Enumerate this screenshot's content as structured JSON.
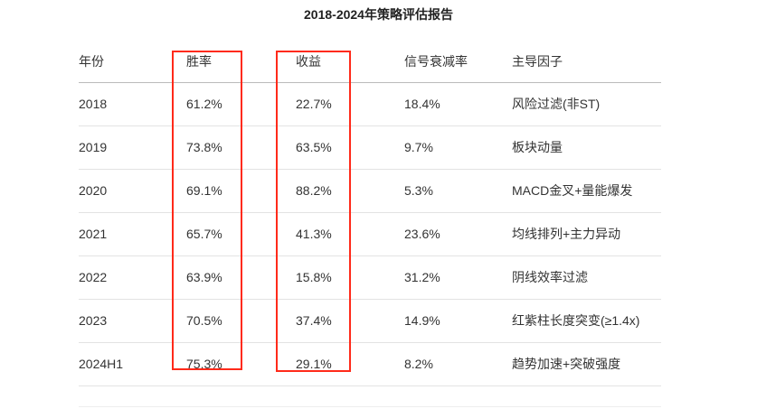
{
  "title": "2018-2024年策略评估报告",
  "headers": [
    "年份",
    "胜率",
    "收益",
    "信号衰减率",
    "主导因子"
  ],
  "rows": [
    [
      "2018",
      "61.2%",
      "22.7%",
      "18.4%",
      "风险过滤(非ST)"
    ],
    [
      "2019",
      "73.8%",
      "63.5%",
      "9.7%",
      "板块动量"
    ],
    [
      "2020",
      "69.1%",
      "88.2%",
      "5.3%",
      "MACD金叉+量能爆发"
    ],
    [
      "2021",
      "65.7%",
      "41.3%",
      "23.6%",
      "均线排列+主力异动"
    ],
    [
      "2022",
      "63.9%",
      "15.8%",
      "31.2%",
      "阴线效率过滤"
    ],
    [
      "2023",
      "70.5%",
      "37.4%",
      "14.9%",
      "红紫柱长度突变(≥1.4x)"
    ],
    [
      "2024H1",
      "75.3%",
      "29.1%",
      "8.2%",
      "趋势加速+突破强度"
    ]
  ],
  "highlight_color": "#ff2a1a"
}
